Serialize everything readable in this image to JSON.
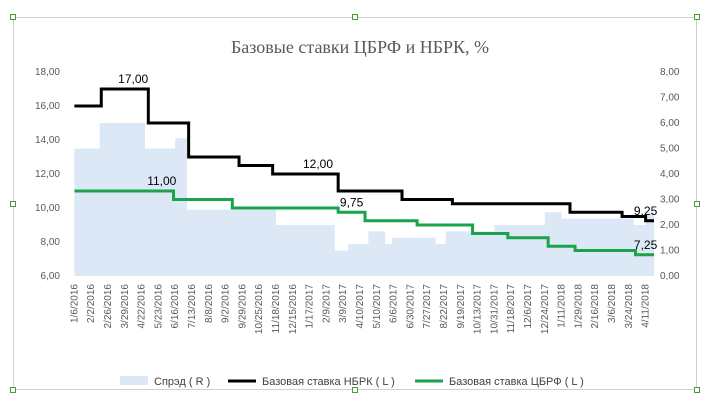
{
  "chart_data": {
    "type": "line",
    "title": "Базовые ставки ЦБРФ и НБРК, %",
    "xlabel": "",
    "ylabel_left": "",
    "ylabel_right": "",
    "y_left_lim": [
      6,
      18
    ],
    "y_left_ticks": [
      "6,00",
      "8,00",
      "10,00",
      "12,00",
      "14,00",
      "16,00",
      "18,00"
    ],
    "y_right_lim": [
      0,
      8
    ],
    "y_right_ticks": [
      "0,00",
      "1,00",
      "2,00",
      "3,00",
      "4,00",
      "5,00",
      "6,00",
      "7,00",
      "8,00"
    ],
    "x_ticks": [
      "1/6/2016",
      "2/2/2016",
      "2/26/2016",
      "3/29/2016",
      "4/22/2016",
      "5/23/2016",
      "6/16/2016",
      "7/13/2016",
      "8/8/2016",
      "9/2/2016",
      "9/29/2016",
      "10/25/2016",
      "11/18/2016",
      "12/15/2016",
      "1/17/2017",
      "2/9/2017",
      "3/9/2017",
      "4/10/2017",
      "5/10/2017",
      "6/6/2017",
      "6/30/2017",
      "7/27/2017",
      "8/22/2017",
      "9/19/2017",
      "10/13/2017",
      "10/31/2017",
      "11/18/2017",
      "12/6/2017",
      "12/24/2017",
      "1/11/2018",
      "1/29/2018",
      "2/16/2018",
      "3/6/2018",
      "3/24/2018",
      "4/11/2018"
    ],
    "grid": false,
    "legend_position": "bottom",
    "series": [
      {
        "name": "Спрэд ( R )",
        "axis": "right",
        "kind": "area",
        "color": "#dce8f5",
        "points": [
          [
            0,
            5.0
          ],
          [
            1.5,
            5.0
          ],
          [
            1.5,
            6.0
          ],
          [
            4.2,
            6.0
          ],
          [
            4.2,
            5.0
          ],
          [
            6.0,
            5.0
          ],
          [
            6.0,
            5.4
          ],
          [
            6.7,
            5.4
          ],
          [
            6.7,
            2.6
          ],
          [
            12.0,
            2.6
          ],
          [
            12.0,
            2.0
          ],
          [
            15.5,
            2.0
          ],
          [
            15.5,
            1.0
          ],
          [
            16.3,
            1.0
          ],
          [
            16.3,
            1.25
          ],
          [
            17.5,
            1.25
          ],
          [
            17.5,
            1.75
          ],
          [
            18.5,
            1.75
          ],
          [
            18.5,
            1.25
          ],
          [
            18.9,
            1.25
          ],
          [
            18.9,
            1.5
          ],
          [
            21.5,
            1.5
          ],
          [
            21.5,
            1.25
          ],
          [
            22.1,
            1.25
          ],
          [
            22.1,
            1.75
          ],
          [
            25.0,
            1.75
          ],
          [
            25.0,
            2.0
          ],
          [
            28.0,
            2.0
          ],
          [
            28.0,
            2.5
          ],
          [
            29.0,
            2.5
          ],
          [
            29.0,
            2.25
          ],
          [
            33.3,
            2.25
          ],
          [
            33.3,
            2.0
          ],
          [
            34.0,
            2.0
          ],
          [
            34.0,
            2.5
          ],
          [
            34.6,
            2.5
          ]
        ]
      },
      {
        "name": "Базовая ставка НБРК ( L )",
        "axis": "left",
        "kind": "step-line",
        "color": "#000000",
        "points": [
          [
            0,
            16.0
          ],
          [
            1.6,
            16.0
          ],
          [
            1.6,
            17.0
          ],
          [
            4.4,
            17.0
          ],
          [
            4.4,
            15.0
          ],
          [
            6.8,
            15.0
          ],
          [
            6.8,
            13.0
          ],
          [
            9.8,
            13.0
          ],
          [
            9.8,
            12.5
          ],
          [
            11.8,
            12.5
          ],
          [
            11.8,
            12.0
          ],
          [
            15.7,
            12.0
          ],
          [
            15.7,
            11.0
          ],
          [
            19.5,
            11.0
          ],
          [
            19.5,
            10.5
          ],
          [
            22.5,
            10.5
          ],
          [
            22.5,
            10.25
          ],
          [
            29.5,
            10.25
          ],
          [
            29.5,
            9.75
          ],
          [
            32.6,
            9.75
          ],
          [
            32.6,
            9.5
          ],
          [
            34.0,
            9.5
          ],
          [
            34.0,
            9.25
          ],
          [
            34.6,
            9.25
          ]
        ]
      },
      {
        "name": "Базовая ставка ЦБРФ ( L )",
        "axis": "left",
        "kind": "step-line",
        "color": "#1aa34a",
        "points": [
          [
            0,
            11.0
          ],
          [
            5.9,
            11.0
          ],
          [
            5.9,
            10.5
          ],
          [
            9.4,
            10.5
          ],
          [
            9.4,
            10.0
          ],
          [
            15.7,
            10.0
          ],
          [
            15.7,
            9.75
          ],
          [
            17.3,
            9.75
          ],
          [
            17.3,
            9.25
          ],
          [
            20.4,
            9.25
          ],
          [
            20.4,
            9.0
          ],
          [
            23.7,
            9.0
          ],
          [
            23.7,
            8.5
          ],
          [
            25.8,
            8.5
          ],
          [
            25.8,
            8.25
          ],
          [
            28.2,
            8.25
          ],
          [
            28.2,
            7.75
          ],
          [
            29.8,
            7.75
          ],
          [
            29.8,
            7.5
          ],
          [
            33.4,
            7.5
          ],
          [
            33.4,
            7.25
          ],
          [
            34.6,
            7.25
          ]
        ]
      }
    ],
    "annotations": [
      {
        "text": "17,00",
        "series": "Базовая ставка НБРК ( L )",
        "x": 3.5,
        "y": 17.0
      },
      {
        "text": "12,00",
        "series": "Базовая ставка НБРК ( L )",
        "x": 14.5,
        "y": 12.0
      },
      {
        "text": "11,00",
        "series": "Базовая ставка ЦБРФ ( L )",
        "x": 5.2,
        "y": 11.0
      },
      {
        "text": "9,75",
        "series": "Базовая ставка ЦБРФ ( L )",
        "x": 16.5,
        "y": 9.75
      },
      {
        "text": "9,25",
        "series": "Базовая ставка НБРК ( L )",
        "x": 34.0,
        "y": 9.25
      },
      {
        "text": "7,25",
        "series": "Базовая ставка ЦБРФ ( L )",
        "x": 34.0,
        "y": 7.25
      }
    ]
  }
}
